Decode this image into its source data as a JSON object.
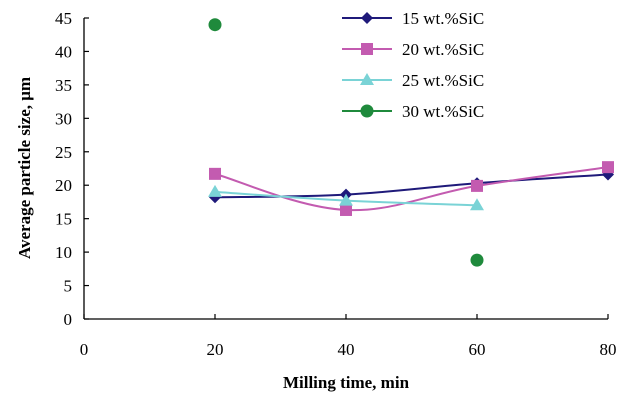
{
  "chart_data": {
    "type": "line",
    "title": "",
    "xlabel": "Milling time, min",
    "ylabel": "Average particle size, μm",
    "xlim": [
      0,
      80
    ],
    "ylim": [
      0,
      45
    ],
    "xticks": [
      0,
      20,
      40,
      60,
      80
    ],
    "yticks": [
      0,
      5,
      10,
      15,
      20,
      25,
      30,
      35,
      40,
      45
    ],
    "grid": false,
    "legend_position": "top-right",
    "series": [
      {
        "name": "15 wt.%SiC",
        "color": "#1f1a7a",
        "marker": "diamond",
        "line": true,
        "x": [
          20,
          40,
          60,
          80
        ],
        "y": [
          18.2,
          18.6,
          20.3,
          21.6
        ]
      },
      {
        "name": "20 wt.%SiC",
        "color": "#c35bb0",
        "marker": "square",
        "line": true,
        "x": [
          20,
          40,
          60,
          80
        ],
        "y": [
          21.7,
          16.3,
          19.9,
          22.7
        ]
      },
      {
        "name": "25 wt.%SiC",
        "color": "#7ad3d6",
        "marker": "triangle",
        "line": true,
        "x": [
          20,
          40,
          60
        ],
        "y": [
          19.0,
          17.7,
          17.0
        ]
      },
      {
        "name": "30 wt.%SiC",
        "color": "#1f8a3c",
        "marker": "circle",
        "line": false,
        "x": [
          20,
          60
        ],
        "y": [
          44.0,
          8.8
        ]
      }
    ]
  }
}
